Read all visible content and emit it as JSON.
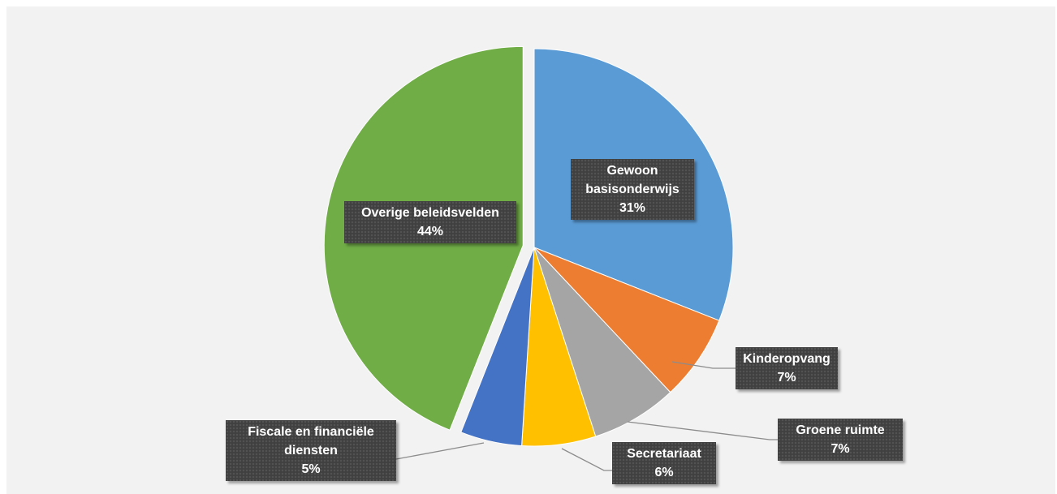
{
  "chart_data": {
    "type": "pie",
    "title": "",
    "exploded_slice": "Overige beleidsvelden",
    "slices": [
      {
        "label_lines": [
          "Gewoon",
          "basisonderwijs"
        ],
        "pct_label": "31%",
        "value": 31,
        "color": "#5b9bd5"
      },
      {
        "label_lines": [
          "Kinderopvang"
        ],
        "pct_label": "7%",
        "value": 7,
        "color": "#ed7d31"
      },
      {
        "label_lines": [
          "Groene ruimte"
        ],
        "pct_label": "7%",
        "value": 7,
        "color": "#a5a5a5"
      },
      {
        "label_lines": [
          "Secretariaat"
        ],
        "pct_label": "6%",
        "value": 6,
        "color": "#ffc000"
      },
      {
        "label_lines": [
          "Fiscale en financiële",
          "diensten"
        ],
        "pct_label": "5%",
        "value": 5,
        "color": "#4472c4"
      },
      {
        "label_lines": [
          "Overige beleidsvelden"
        ],
        "pct_label": "44%",
        "value": 44,
        "color": "#70ad47"
      }
    ]
  }
}
